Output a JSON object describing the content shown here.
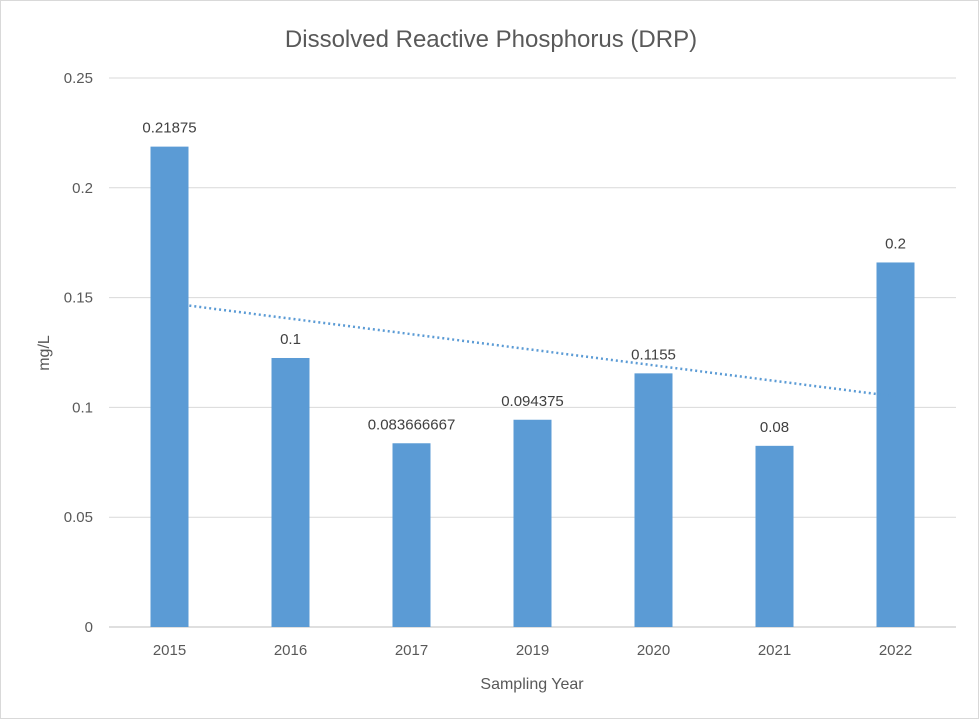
{
  "chart_data": {
    "type": "bar",
    "title": "Dissolved Reactive Phosphorus (DRP)",
    "xlabel": "Sampling Year",
    "ylabel": "mg/L",
    "categories": [
      "2015",
      "2016",
      "2017",
      "2019",
      "2020",
      "2021",
      "2022"
    ],
    "values": [
      0.21875,
      0.1225,
      0.083666667,
      0.094375,
      0.1155,
      0.0825,
      0.166
    ],
    "data_labels": [
      "0.21875",
      "0.1",
      "0.083666667",
      "0.094375",
      "0.1155",
      "0.08",
      "0.2"
    ],
    "ylim": [
      0,
      0.25
    ],
    "yticks": [
      0,
      0.05,
      0.1,
      0.15,
      0.2,
      0.25
    ],
    "ytick_labels": [
      "0",
      "0.05",
      "0.1",
      "0.15",
      "0.2",
      "0.25"
    ],
    "grid": true,
    "legend": "none",
    "trendline": {
      "type": "linear",
      "style": "dotted",
      "start": 0.1475,
      "end": 0.105
    },
    "colors": {
      "bar": "#5b9bd5",
      "trendline": "#5b9bd5",
      "grid": "#d9d9d9",
      "text": "#595959"
    }
  }
}
